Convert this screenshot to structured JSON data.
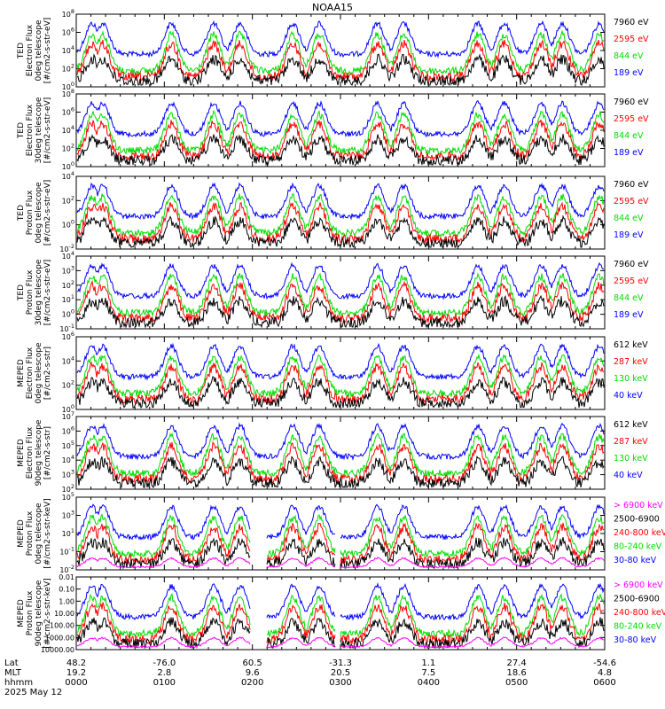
{
  "title": "NOAA15",
  "colors": {
    "black": "#000000",
    "blue": "#0000ff",
    "red": "#ff0000",
    "green": "#00dd00",
    "magenta": "#ff00ff"
  },
  "x_axis": {
    "rows": [
      {
        "label": "Lat",
        "values": [
          "48.2",
          "-76.0",
          "60.5",
          "-31.3",
          "1.1",
          "27.4",
          "-54.6"
        ]
      },
      {
        "label": "MLT",
        "values": [
          "19.2",
          "2.8",
          "9.6",
          "20.5",
          "7.5",
          "18.6",
          "4.8"
        ]
      },
      {
        "label": "hhmm",
        "values": [
          "0000",
          "0100",
          "0200",
          "0300",
          "0400",
          "0500",
          "0600"
        ]
      }
    ],
    "date": "2025 May 12"
  },
  "chart_data": [
    {
      "type": "line",
      "ylabel": [
        "TED",
        "Electron Flux",
        "0deg telescope",
        "[#/cm2-s-str-eV]"
      ],
      "yscale": "log",
      "ytick_labels": [
        "10^0",
        "10^2",
        "10^4",
        "10^6",
        "10^8"
      ],
      "legend": [
        {
          "name": "7960 eV",
          "color": "#000000"
        },
        {
          "name": "2595 eV",
          "color": "#ff0000"
        },
        {
          "name": "844 eV",
          "color": "#00dd00"
        },
        {
          "name": "189 eV",
          "color": "#0000ff"
        }
      ]
    },
    {
      "type": "line",
      "ylabel": [
        "TED",
        "Electron Flux",
        "30deg telescope",
        "[#/cm2-s-str-eV]"
      ],
      "yscale": "log",
      "ytick_labels": [
        "10^0",
        "10^2",
        "10^4",
        "10^6",
        "10^8"
      ],
      "legend": [
        {
          "name": "7960 eV",
          "color": "#000000"
        },
        {
          "name": "2595 eV",
          "color": "#ff0000"
        },
        {
          "name": "844 eV",
          "color": "#00dd00"
        },
        {
          "name": "189 eV",
          "color": "#0000ff"
        }
      ]
    },
    {
      "type": "line",
      "ylabel": [
        "TED",
        "Proton Flux",
        "0deg telescope",
        "[#/cm2-s-str-eV]"
      ],
      "yscale": "log",
      "ytick_labels": [
        "10^-2",
        "10^0",
        "10^2",
        "10^4"
      ],
      "legend": [
        {
          "name": "7960 eV",
          "color": "#000000"
        },
        {
          "name": "2595 eV",
          "color": "#ff0000"
        },
        {
          "name": "844 eV",
          "color": "#00dd00"
        },
        {
          "name": "189 eV",
          "color": "#0000ff"
        }
      ]
    },
    {
      "type": "line",
      "ylabel": [
        "TED",
        "Proton Flux",
        "30deg telescope",
        "[#/cm2-s-str-eV]"
      ],
      "yscale": "log",
      "ytick_labels": [
        "10^-1",
        "10^0",
        "10^1",
        "10^2",
        "10^3",
        "10^4"
      ],
      "legend": [
        {
          "name": "7960 eV",
          "color": "#000000"
        },
        {
          "name": "2595 eV",
          "color": "#ff0000"
        },
        {
          "name": "844 eV",
          "color": "#00dd00"
        },
        {
          "name": "189 eV",
          "color": "#0000ff"
        }
      ]
    },
    {
      "type": "line",
      "ylabel": [
        "MEPED",
        "Electron Flux",
        "0deg telescope",
        "[#/cm2-s-str]"
      ],
      "yscale": "log",
      "ytick_labels": [
        "10^0",
        "10^2",
        "10^4",
        "10^6"
      ],
      "legend": [
        {
          "name": "612 keV",
          "color": "#000000"
        },
        {
          "name": "287 keV",
          "color": "#ff0000"
        },
        {
          "name": "130 keV",
          "color": "#00dd00"
        },
        {
          "name": "40 keV",
          "color": "#0000ff"
        }
      ]
    },
    {
      "type": "line",
      "ylabel": [
        "MEPED",
        "Electron Flux",
        "90deg telescope",
        "[#/cm2-s-str]"
      ],
      "yscale": "log",
      "ytick_labels": [
        "10^2",
        "10^3",
        "10^4",
        "10^5",
        "10^6",
        "10^7"
      ],
      "legend": [
        {
          "name": "612 keV",
          "color": "#000000"
        },
        {
          "name": "287 keV",
          "color": "#ff0000"
        },
        {
          "name": "130 keV",
          "color": "#00dd00"
        },
        {
          "name": "40 keV",
          "color": "#0000ff"
        }
      ]
    },
    {
      "type": "line",
      "ylabel": [
        "MEPED",
        "Proton Flux",
        "0deg telescope",
        "[#/cm2-s-str-keV]"
      ],
      "yscale": "log",
      "ytick_labels": [
        "10^-2",
        "10^-1",
        "10^1",
        "10^3",
        "10^5"
      ],
      "legend": [
        {
          "name": "> 6900 keV",
          "color": "#ff00ff"
        },
        {
          "name": "2500-6900",
          "color": "#000000"
        },
        {
          "name": "240-800 keV",
          "color": "#ff0000"
        },
        {
          "name": "80-240 keV",
          "color": "#00dd00"
        },
        {
          "name": "30-80 keV",
          "color": "#0000ff"
        }
      ]
    },
    {
      "type": "line",
      "ylabel": [
        "MEPED",
        "Proton Flux",
        "90deg telescope",
        "[#/cm2-s-str-keV]"
      ],
      "yscale": "log",
      "ytick_labels": [
        "10000.00",
        "1000.00",
        "100.00",
        "10.00",
        "1.00",
        "0.10",
        "0.01"
      ],
      "legend": [
        {
          "name": "> 6900 keV",
          "color": "#ff00ff"
        },
        {
          "name": "2500-6900",
          "color": "#000000"
        },
        {
          "name": "240-800 keV",
          "color": "#ff0000"
        },
        {
          "name": "80-240 keV",
          "color": "#00dd00"
        },
        {
          "name": "30-80 keV",
          "color": "#0000ff"
        }
      ]
    }
  ]
}
